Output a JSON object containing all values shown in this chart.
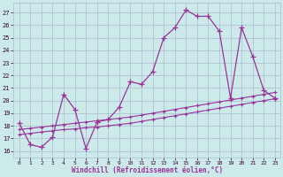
{
  "xlabel": "Windchill (Refroidissement éolien,°C)",
  "background_color": "#cceaea",
  "grid_color": "#aabbcc",
  "line_color": "#993399",
  "x_ticks": [
    0,
    1,
    2,
    3,
    4,
    5,
    6,
    7,
    8,
    9,
    10,
    11,
    12,
    13,
    14,
    15,
    16,
    17,
    18,
    19,
    20,
    21,
    22,
    23
  ],
  "y_ticks": [
    16,
    17,
    18,
    19,
    20,
    21,
    22,
    23,
    24,
    25,
    26,
    27
  ],
  "ylim": [
    15.5,
    27.8
  ],
  "xlim": [
    -0.5,
    23.5
  ],
  "main_x": [
    0,
    1,
    2,
    3,
    4,
    5,
    6,
    7,
    8,
    9,
    10,
    11,
    12,
    13,
    14,
    15,
    16,
    17,
    18,
    19,
    20,
    21,
    22,
    23
  ],
  "main_y": [
    18.2,
    16.5,
    16.3,
    17.1,
    20.5,
    19.3,
    16.2,
    18.3,
    18.5,
    19.5,
    21.5,
    21.3,
    22.3,
    25.0,
    25.8,
    27.2,
    26.7,
    26.7,
    25.5,
    20.2,
    25.8,
    23.5,
    20.8,
    20.2
  ],
  "trend1_x": [
    0,
    1,
    2,
    3,
    4,
    5,
    6,
    7,
    8,
    9,
    10,
    11,
    12,
    13,
    14,
    15,
    16,
    17,
    18,
    19,
    20,
    21,
    22,
    23
  ],
  "trend1_y": [
    17.3,
    17.4,
    17.5,
    17.6,
    17.7,
    17.75,
    17.85,
    17.9,
    18.0,
    18.1,
    18.2,
    18.35,
    18.5,
    18.65,
    18.8,
    18.95,
    19.1,
    19.25,
    19.4,
    19.55,
    19.7,
    19.85,
    20.0,
    20.15
  ],
  "trend2_x": [
    0,
    1,
    2,
    3,
    4,
    5,
    6,
    7,
    8,
    9,
    10,
    11,
    12,
    13,
    14,
    15,
    16,
    17,
    18,
    19,
    20,
    21,
    22,
    23
  ],
  "trend2_y": [
    17.7,
    17.8,
    17.9,
    18.0,
    18.1,
    18.2,
    18.3,
    18.4,
    18.5,
    18.6,
    18.7,
    18.85,
    19.0,
    19.15,
    19.3,
    19.45,
    19.6,
    19.75,
    19.9,
    20.05,
    20.2,
    20.35,
    20.5,
    20.65
  ]
}
